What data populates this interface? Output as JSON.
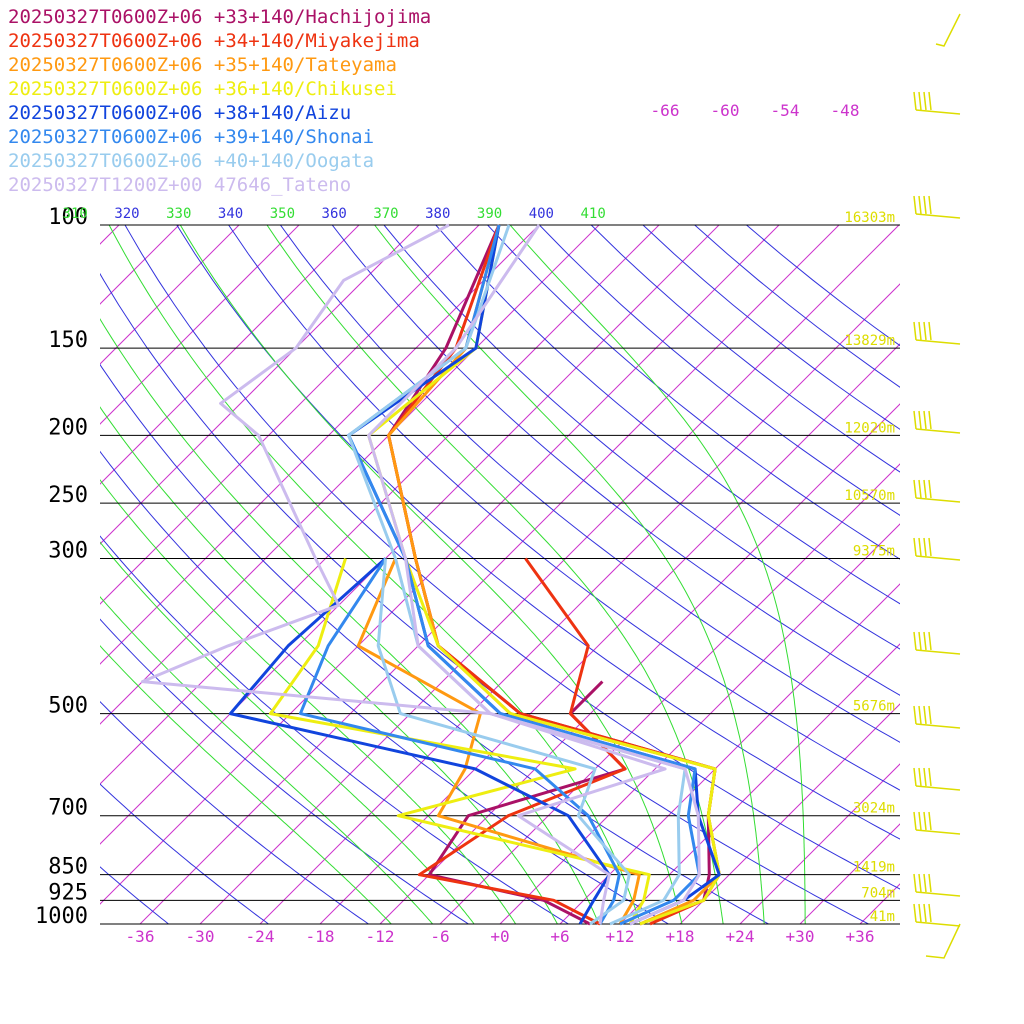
{
  "chart_data": {
    "type": "line",
    "title": "",
    "xlabel": "",
    "ylabel": "",
    "pressure_range": [
      1000,
      100
    ],
    "temperature_range_at_1000": [
      -40,
      40
    ],
    "pressure_ticks": [
      "100",
      "150",
      "200",
      "250",
      "300",
      "500",
      "700",
      "850",
      "925",
      "1000"
    ],
    "temperature_ticks": [
      "-36",
      "-30",
      "-24",
      "-18",
      "-12",
      "-6",
      "+0",
      "+6",
      "+12",
      "+18",
      "+24",
      "+30",
      "+36"
    ],
    "dry_adiabat_labels": [
      "310",
      "320",
      "330",
      "340",
      "350",
      "360",
      "370",
      "380",
      "390",
      "400",
      "410"
    ],
    "mixing_ratio_labels": [
      "-66",
      "-60",
      "-54",
      "-48"
    ],
    "height_labels": [
      {
        "p": 100,
        "text": "16303m"
      },
      {
        "p": 150,
        "text": "13829m"
      },
      {
        "p": 200,
        "text": "12020m"
      },
      {
        "p": 250,
        "text": "10570m"
      },
      {
        "p": 300,
        "text": "9375m"
      },
      {
        "p": 500,
        "text": "5676m"
      },
      {
        "p": 700,
        "text": "3024m"
      },
      {
        "p": 850,
        "text": "1419m"
      },
      {
        "p": 925,
        "text": "704m"
      },
      {
        "p": 1000,
        "text": "41m"
      }
    ],
    "isotherm_color": "#cc33cc",
    "dry_adiabat_color": "#3333dd",
    "moist_adiabat_color": "#33dd33",
    "wind_barb_color": "#dddd00",
    "series": [
      {
        "name": "20250327T0600Z+06 +33+140/Hachijojima",
        "color": "#aa1166",
        "temp": [
          [
            1000,
            14
          ],
          [
            925,
            18
          ],
          [
            850,
            16
          ],
          [
            700,
            10
          ],
          [
            600,
            6
          ],
          [
            500,
            -19
          ],
          [
            400,
            -34
          ],
          [
            300,
            -45
          ],
          [
            200,
            -60
          ],
          [
            150,
            -63
          ],
          [
            100,
            -70
          ]
        ],
        "dew": [
          [
            1000,
            9
          ],
          [
            925,
            2
          ],
          [
            850,
            -12
          ],
          [
            700,
            -14
          ],
          [
            600,
            -3
          ],
          [
            500,
            -14
          ],
          [
            450,
            -14
          ]
        ]
      },
      {
        "name": "20250327T0600Z+06 +34+140/Miyakejima",
        "color": "#ee3311",
        "temp": [
          [
            1000,
            15
          ],
          [
            925,
            18
          ],
          [
            850,
            17
          ],
          [
            700,
            10
          ],
          [
            600,
            6
          ],
          [
            500,
            -19
          ],
          [
            400,
            -34
          ],
          [
            300,
            -45
          ],
          [
            200,
            -60
          ],
          [
            150,
            -62
          ],
          [
            100,
            -70
          ]
        ],
        "dew": [
          [
            1000,
            10
          ],
          [
            925,
            3
          ],
          [
            850,
            -13
          ],
          [
            700,
            -10
          ],
          [
            600,
            -3
          ],
          [
            500,
            -14
          ],
          [
            400,
            -19
          ],
          [
            300,
            -34
          ]
        ]
      },
      {
        "name": "20250327T0600Z+06 +35+140/Tateyama",
        "color": "#ff9911",
        "temp": [
          [
            1000,
            14
          ],
          [
            925,
            17
          ],
          [
            850,
            17
          ],
          [
            700,
            10
          ],
          [
            600,
            6
          ],
          [
            500,
            -20
          ],
          [
            400,
            -34
          ],
          [
            300,
            -45
          ],
          [
            200,
            -60
          ],
          [
            150,
            -61
          ],
          [
            100,
            -70
          ]
        ],
        "dew": [
          [
            1000,
            12
          ],
          [
            925,
            11
          ],
          [
            850,
            9
          ],
          [
            700,
            -17
          ],
          [
            600,
            -19
          ],
          [
            500,
            -23
          ],
          [
            400,
            -42
          ],
          [
            300,
            -47
          ]
        ]
      },
      {
        "name": "20250327T0600Z+06 +36+140/Chikusei",
        "color": "#eeee11",
        "temp": [
          [
            1000,
            14
          ],
          [
            925,
            18
          ],
          [
            850,
            17
          ],
          [
            700,
            10
          ],
          [
            600,
            6
          ],
          [
            500,
            -20
          ],
          [
            400,
            -34
          ],
          [
            300,
            -46
          ],
          [
            200,
            -62
          ],
          [
            150,
            -60
          ],
          [
            100,
            -70
          ]
        ],
        "dew": [
          [
            1000,
            13
          ],
          [
            925,
            12
          ],
          [
            850,
            10
          ],
          [
            700,
            -21
          ],
          [
            600,
            -8
          ],
          [
            500,
            -44
          ],
          [
            400,
            -46
          ],
          [
            300,
            -52
          ]
        ]
      },
      {
        "name": "20250327T0600Z+06 +38+140/Aizu",
        "color": "#1144dd",
        "temp": [
          [
            1000,
            13
          ],
          [
            925,
            16
          ],
          [
            850,
            17
          ],
          [
            700,
            9
          ],
          [
            600,
            4
          ],
          [
            500,
            -21
          ],
          [
            400,
            -35
          ],
          [
            300,
            -46
          ],
          [
            200,
            -64
          ],
          [
            150,
            -60
          ],
          [
            100,
            -70
          ]
        ],
        "dew": [
          [
            1000,
            8
          ],
          [
            925,
            7
          ],
          [
            850,
            6
          ],
          [
            700,
            -4
          ],
          [
            600,
            -18
          ],
          [
            500,
            -48
          ],
          [
            400,
            -49
          ],
          [
            300,
            -48
          ]
        ]
      },
      {
        "name": "20250327T0600Z+06 +39+140/Shonai",
        "color": "#3388ee",
        "temp": [
          [
            1000,
            12
          ],
          [
            925,
            15
          ],
          [
            850,
            15
          ],
          [
            700,
            8
          ],
          [
            600,
            4
          ],
          [
            500,
            -21
          ],
          [
            400,
            -35
          ],
          [
            300,
            -46
          ],
          [
            200,
            -64
          ],
          [
            150,
            -61
          ],
          [
            100,
            -70
          ]
        ],
        "dew": [
          [
            1000,
            10
          ],
          [
            925,
            9
          ],
          [
            850,
            7
          ],
          [
            700,
            -2
          ],
          [
            600,
            -12
          ],
          [
            500,
            -41
          ],
          [
            400,
            -45
          ],
          [
            300,
            -48
          ]
        ]
      },
      {
        "name": "20250327T0600Z+06 +40+140/Oogata",
        "color": "#99ccee",
        "temp": [
          [
            1000,
            11
          ],
          [
            925,
            14
          ],
          [
            850,
            13
          ],
          [
            700,
            7
          ],
          [
            600,
            3
          ],
          [
            500,
            -22
          ],
          [
            400,
            -36
          ],
          [
            300,
            -47
          ],
          [
            200,
            -64
          ],
          [
            150,
            -61
          ],
          [
            100,
            -69
          ]
        ],
        "dew": [
          [
            1000,
            9
          ],
          [
            925,
            10
          ],
          [
            850,
            8
          ],
          [
            700,
            -3
          ],
          [
            600,
            -6
          ],
          [
            500,
            -31
          ],
          [
            400,
            -40
          ],
          [
            300,
            -48
          ]
        ]
      },
      {
        "name": "20250327T1200Z+00 47646_Tateno",
        "color": "#ccbbee",
        "temp": [
          [
            1000,
            13
          ],
          [
            925,
            16
          ],
          [
            850,
            15
          ],
          [
            700,
            9
          ],
          [
            600,
            3
          ],
          [
            500,
            -22
          ],
          [
            400,
            -36
          ],
          [
            300,
            -46
          ],
          [
            200,
            -62
          ],
          [
            150,
            -62
          ],
          [
            100,
            -66
          ]
        ],
        "dew": [
          [
            1000,
            10
          ],
          [
            925,
            8
          ],
          [
            850,
            6
          ],
          [
            700,
            -9
          ],
          [
            600,
            1
          ],
          [
            500,
            -22
          ],
          [
            450,
            -60
          ],
          [
            400,
            -55
          ],
          [
            350,
            -48
          ],
          [
            300,
            -55
          ],
          [
            200,
            -73
          ],
          [
            180,
            -80
          ],
          [
            150,
            -78
          ],
          [
            120,
            -80
          ],
          [
            100,
            -75
          ]
        ]
      }
    ]
  }
}
